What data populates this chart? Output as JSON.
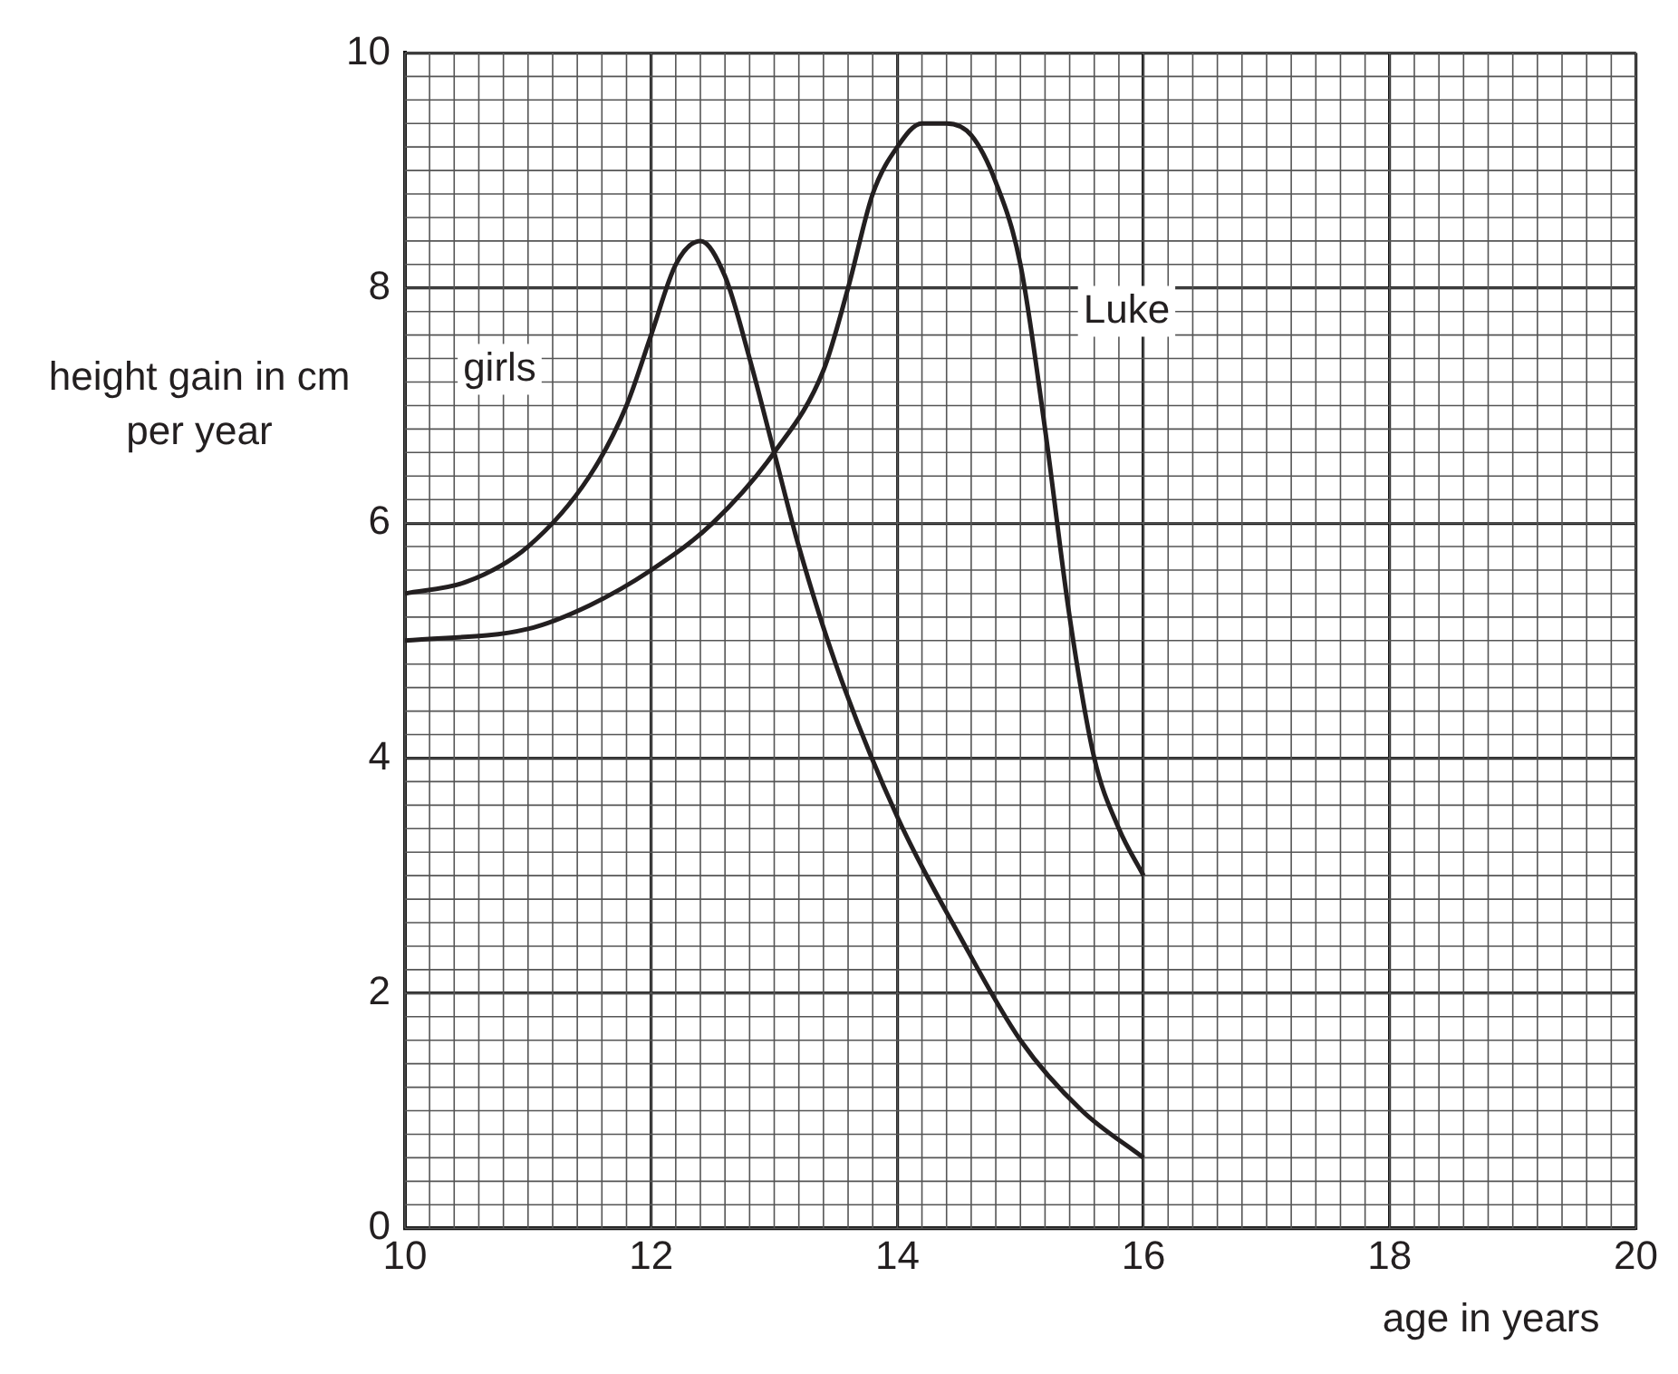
{
  "chart_data": {
    "type": "line",
    "xlabel": "age in years",
    "ylabel": "height gain in cm per year",
    "xlim": [
      10,
      20
    ],
    "xticks": [
      10,
      12,
      14,
      16,
      18,
      20
    ],
    "ylim": [
      0,
      10
    ],
    "yticks": [
      0,
      2,
      4,
      6,
      8,
      10
    ],
    "grid": true,
    "legend": false,
    "marker": "none",
    "line_style": "solid",
    "series": [
      {
        "name": "girls",
        "color": "#231f20",
        "x": [
          10,
          10.5,
          11,
          11.5,
          11.8,
          12,
          12.2,
          12.4,
          12.6,
          12.8,
          13,
          13.2,
          13.5,
          14,
          14.5,
          15,
          15.5,
          16
        ],
        "values": [
          5.4,
          5.5,
          5.8,
          6.4,
          7.0,
          7.6,
          8.2,
          8.4,
          8.1,
          7.4,
          6.6,
          5.8,
          4.8,
          3.5,
          2.5,
          1.6,
          1.0,
          0.6
        ]
      },
      {
        "name": "Luke",
        "color": "#231f20",
        "x": [
          10,
          11,
          11.5,
          12,
          12.5,
          13,
          13.4,
          13.6,
          13.8,
          14,
          14.2,
          14.4,
          14.6,
          14.8,
          15,
          15.2,
          15.4,
          15.6,
          15.8,
          16
        ],
        "values": [
          5.0,
          5.1,
          5.3,
          5.6,
          6.0,
          6.6,
          7.3,
          8.0,
          8.8,
          9.2,
          9.4,
          9.4,
          9.3,
          8.9,
          8.2,
          6.8,
          5.2,
          4.0,
          3.4,
          3.0
        ]
      }
    ]
  }
}
